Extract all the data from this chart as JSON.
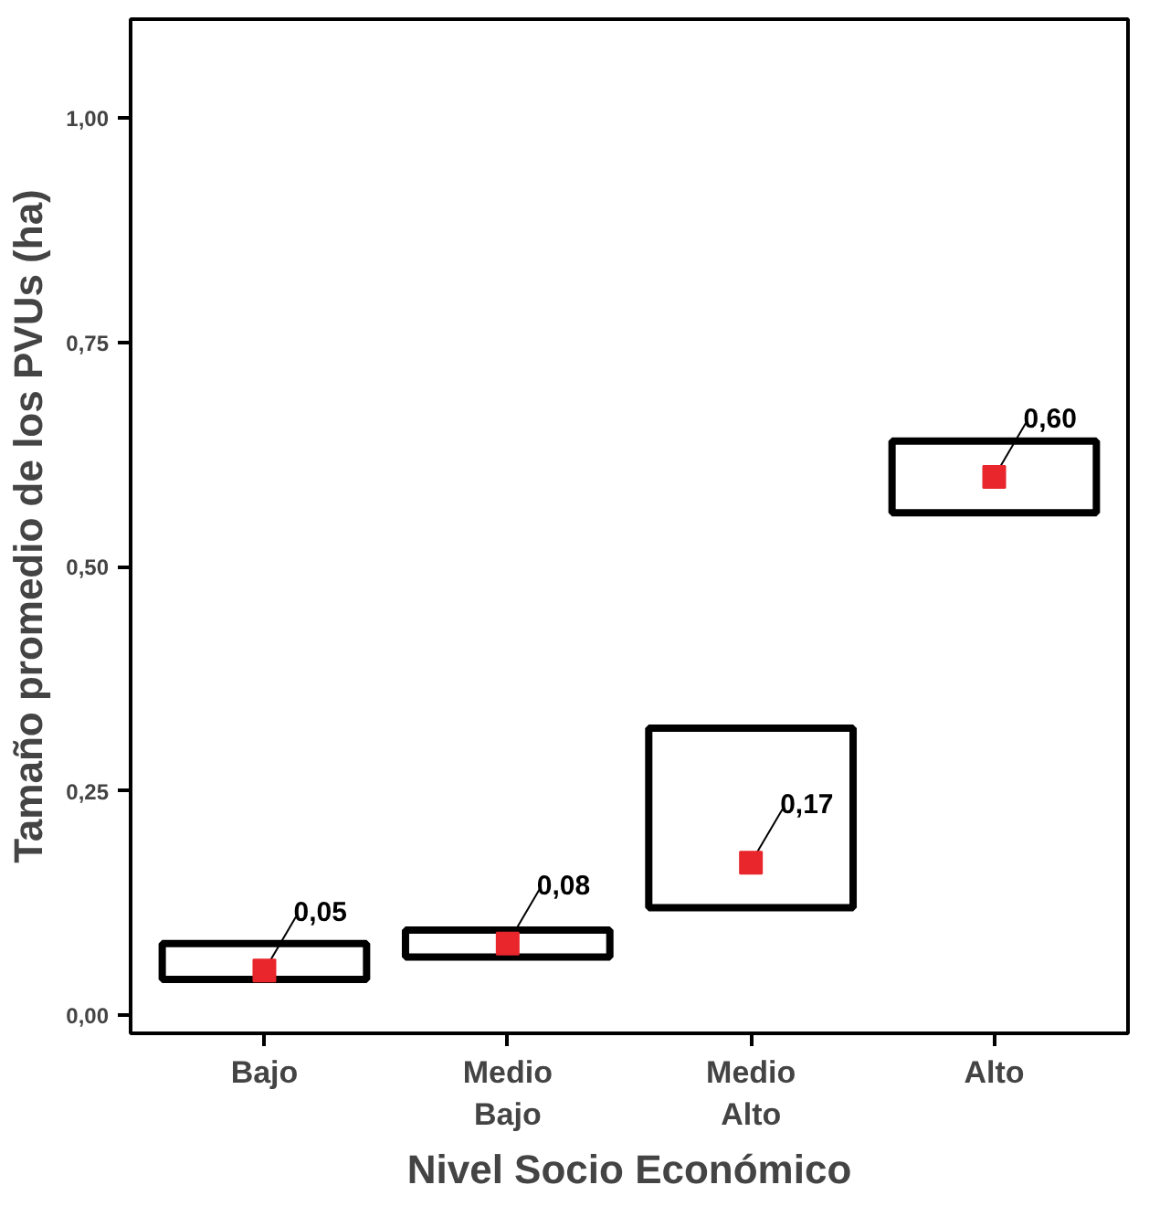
{
  "chart_data": {
    "type": "bar",
    "xlabel": "Nivel Socio Económico",
    "ylabel": "Tamaño promedio de los PVUs (ha)",
    "categories": [
      "Bajo",
      "Medio\nBajo",
      "Medio\nAlto",
      "Alto"
    ],
    "series": [
      {
        "color": "#000000",
        "base": [
          0.04,
          0.065,
          0.12,
          0.56
        ],
        "values": [
          0.04,
          0.03,
          0.2,
          0.08
        ]
      },
      {
        "type": "scatter",
        "color": "#e8262b",
        "marker": "square",
        "values": [
          0.05,
          0.08,
          0.17,
          0.6
        ],
        "value_labels": [
          "0,05",
          "0,08",
          "0,17",
          "0,60"
        ]
      }
    ],
    "ylim": [
      -0.02,
      1.11
    ],
    "yticks": [
      {
        "value": 0,
        "label": "0,00"
      },
      {
        "value": 0.25,
        "label": "0,25"
      },
      {
        "value": 0.5,
        "label": "0,50"
      },
      {
        "value": 0.75,
        "label": "0,75"
      },
      {
        "value": 1,
        "label": "1,00"
      }
    ],
    "grid": false
  }
}
